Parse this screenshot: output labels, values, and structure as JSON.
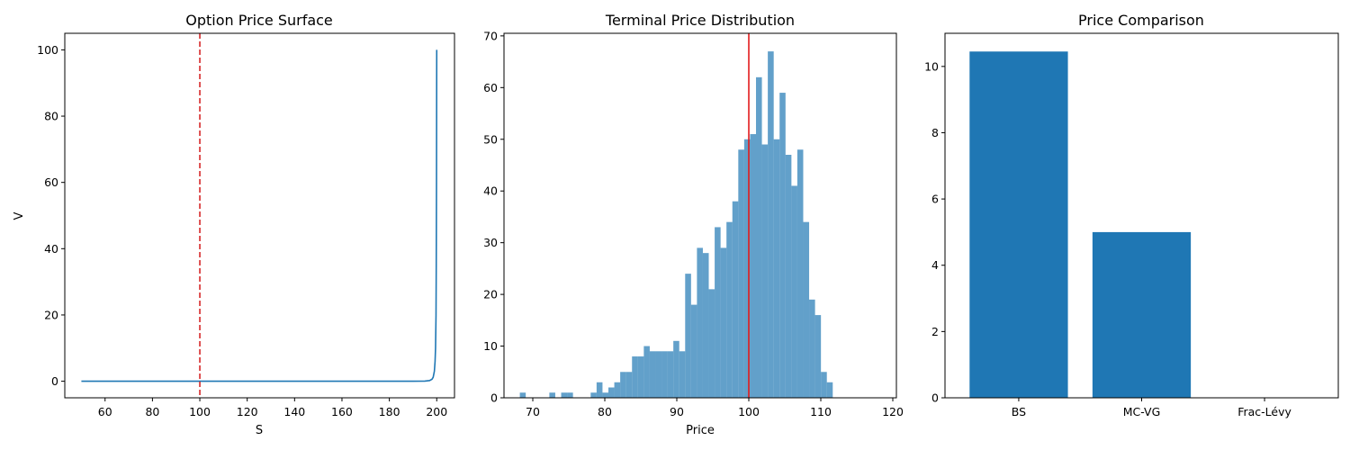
{
  "chart_data": [
    {
      "type": "line",
      "title": "Option Price Surface",
      "xlabel": "S",
      "ylabel": "V",
      "xlim": [
        43,
        207.5
      ],
      "ylim": [
        -5,
        105
      ],
      "xticks": [
        60,
        80,
        100,
        120,
        140,
        160,
        180,
        200
      ],
      "yticks": [
        0,
        20,
        40,
        60,
        80,
        100
      ],
      "color": "#1f77b4",
      "series": [
        {
          "x": [
            50,
            100,
            150,
            190,
            195,
            197,
            198,
            198.5,
            199,
            199.3,
            199.5,
            199.7,
            199.8,
            199.9,
            200
          ],
          "y": [
            0,
            0,
            0,
            0,
            0.05,
            0.2,
            0.6,
            1.2,
            3,
            6,
            10,
            20,
            35,
            60,
            100
          ]
        }
      ],
      "vline": {
        "x": 100,
        "color": "#d62728",
        "style": "dashed"
      },
      "grid": false
    },
    {
      "type": "bar",
      "title": "Terminal Price Distribution",
      "xlabel": "Price",
      "ylabel": "",
      "xlim": [
        66,
        120.5
      ],
      "ylim": [
        0,
        70.5
      ],
      "xticks": [
        70,
        80,
        90,
        100,
        110,
        120
      ],
      "yticks": [
        0,
        10,
        20,
        30,
        40,
        50,
        60,
        70
      ],
      "color": "#1f77b4",
      "opacity": 0.7,
      "bin_start": 68.2,
      "bin_width": 0.82,
      "counts": [
        1,
        0,
        0,
        0,
        0,
        1,
        0,
        1,
        1,
        0,
        0,
        0,
        1,
        3,
        1,
        2,
        3,
        5,
        5,
        8,
        8,
        10,
        9,
        9,
        9,
        9,
        11,
        9,
        24,
        18,
        29,
        28,
        21,
        33,
        29,
        34,
        38,
        48,
        50,
        51,
        62,
        49,
        67,
        50,
        59,
        47,
        41,
        48,
        34,
        19,
        16,
        5,
        3
      ],
      "vline": {
        "x": 100,
        "color": "#e31a1c",
        "style": "solid"
      },
      "grid": false
    },
    {
      "type": "bar",
      "title": "Price Comparison",
      "xlabel": "",
      "ylabel": "",
      "categories": [
        "BS",
        "MC-VG",
        "Frac-Lévy"
      ],
      "values": [
        10.45,
        5.0,
        0.0
      ],
      "ylim": [
        0,
        11
      ],
      "yticks": [
        0,
        2,
        4,
        6,
        8,
        10
      ],
      "color": "#1f77b4",
      "grid": false
    }
  ]
}
